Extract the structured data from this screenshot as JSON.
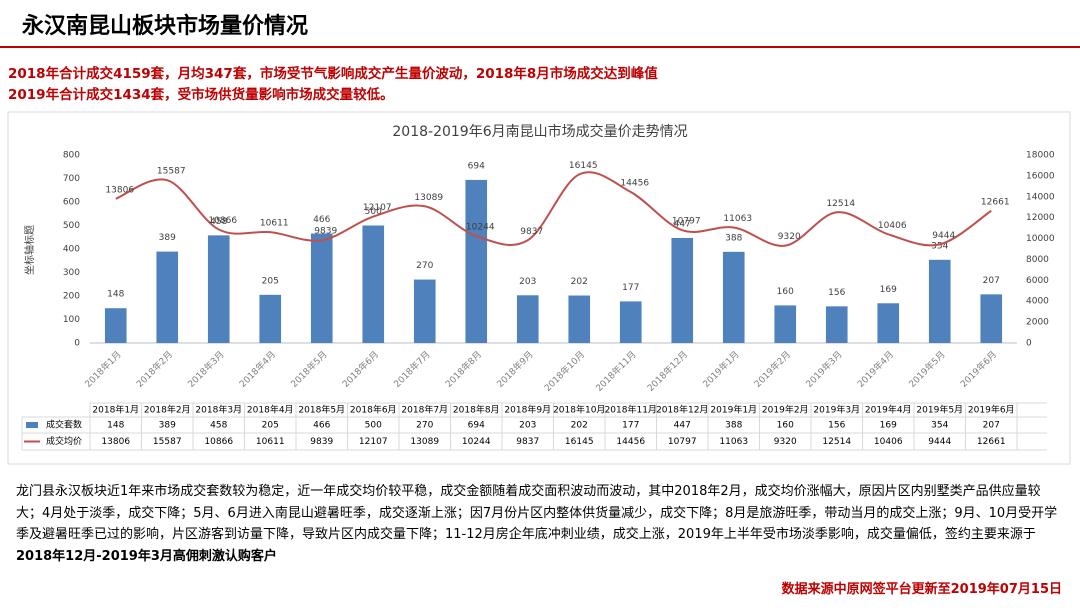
{
  "title": "永汉南昆山板块市场量价情况",
  "highlights": [
    "2018年合计成交4159套，月均347套，市场受节气影响成交产生量价波动，2018年8月市场成交达到峰值",
    "2019年合计成交1434套，受市场供货量影响市场成交量较低。"
  ],
  "chart_data": {
    "type": "bar-line",
    "title": "2018-2019年6月南昆山市场成交量价走势情况",
    "y_axis_label": "坐标轴标题",
    "categories": [
      "2018年1月",
      "2018年2月",
      "2018年3月",
      "2018年4月",
      "2018年5月",
      "2018年6月",
      "2018年7月",
      "2018年8月",
      "2018年9月",
      "2018年10月",
      "2018年11月",
      "2018年12月",
      "2019年1月",
      "2019年2月",
      "2019年3月",
      "2019年4月",
      "2019年5月",
      "2019年6月"
    ],
    "series": [
      {
        "name": "成交套数",
        "type": "bar",
        "color": "#4f81bd",
        "values": [
          148,
          389,
          458,
          205,
          466,
          500,
          270,
          694,
          203,
          202,
          177,
          447,
          388,
          160,
          156,
          169,
          354,
          207
        ]
      },
      {
        "name": "成交均价",
        "type": "line",
        "axis": "y2",
        "color": "#c0504d",
        "values": [
          13806,
          15587,
          10866,
          10611,
          9839,
          12107,
          13089,
          10244,
          9837,
          16145,
          14456,
          10797,
          11063,
          9320,
          12514,
          10406,
          9444,
          12661
        ]
      }
    ],
    "ylim": [
      0,
      800
    ],
    "yticks": [
      0,
      100,
      200,
      300,
      400,
      500,
      600,
      700,
      800
    ],
    "y2lim": [
      0,
      18000
    ],
    "y2ticks": [
      0,
      2000,
      4000,
      6000,
      8000,
      10000,
      12000,
      14000,
      16000,
      18000
    ]
  },
  "description": {
    "text": "龙门县永汉板块近1年来市场成交套数较为稳定，近一年成交均价较平稳，成交金额随着成交面积波动而波动，其中2018年2月，成交均价涨幅大，原因片区内别墅类产品供应量较大；4月处于淡季，成交下降；5月、6月进入南昆山避暑旺季，成交逐渐上涨；因7月份片区内整体供货量减少，成交下降；8月是旅游旺季，带动当月的成交上涨；9月、10月受开学季及避暑旺季已过的影响，片区游客到访量下降，导致片区内成交量下降；11-12月房企年底冲刺业绩，成交上涨，2019年上半年受市场淡季影响，成交量偏低，签约主要来源于",
    "bold": "2018年12月-2019年3月高佣刺激认购客户"
  },
  "source": "数据来源中原网签平台更新至2019年07月15日"
}
